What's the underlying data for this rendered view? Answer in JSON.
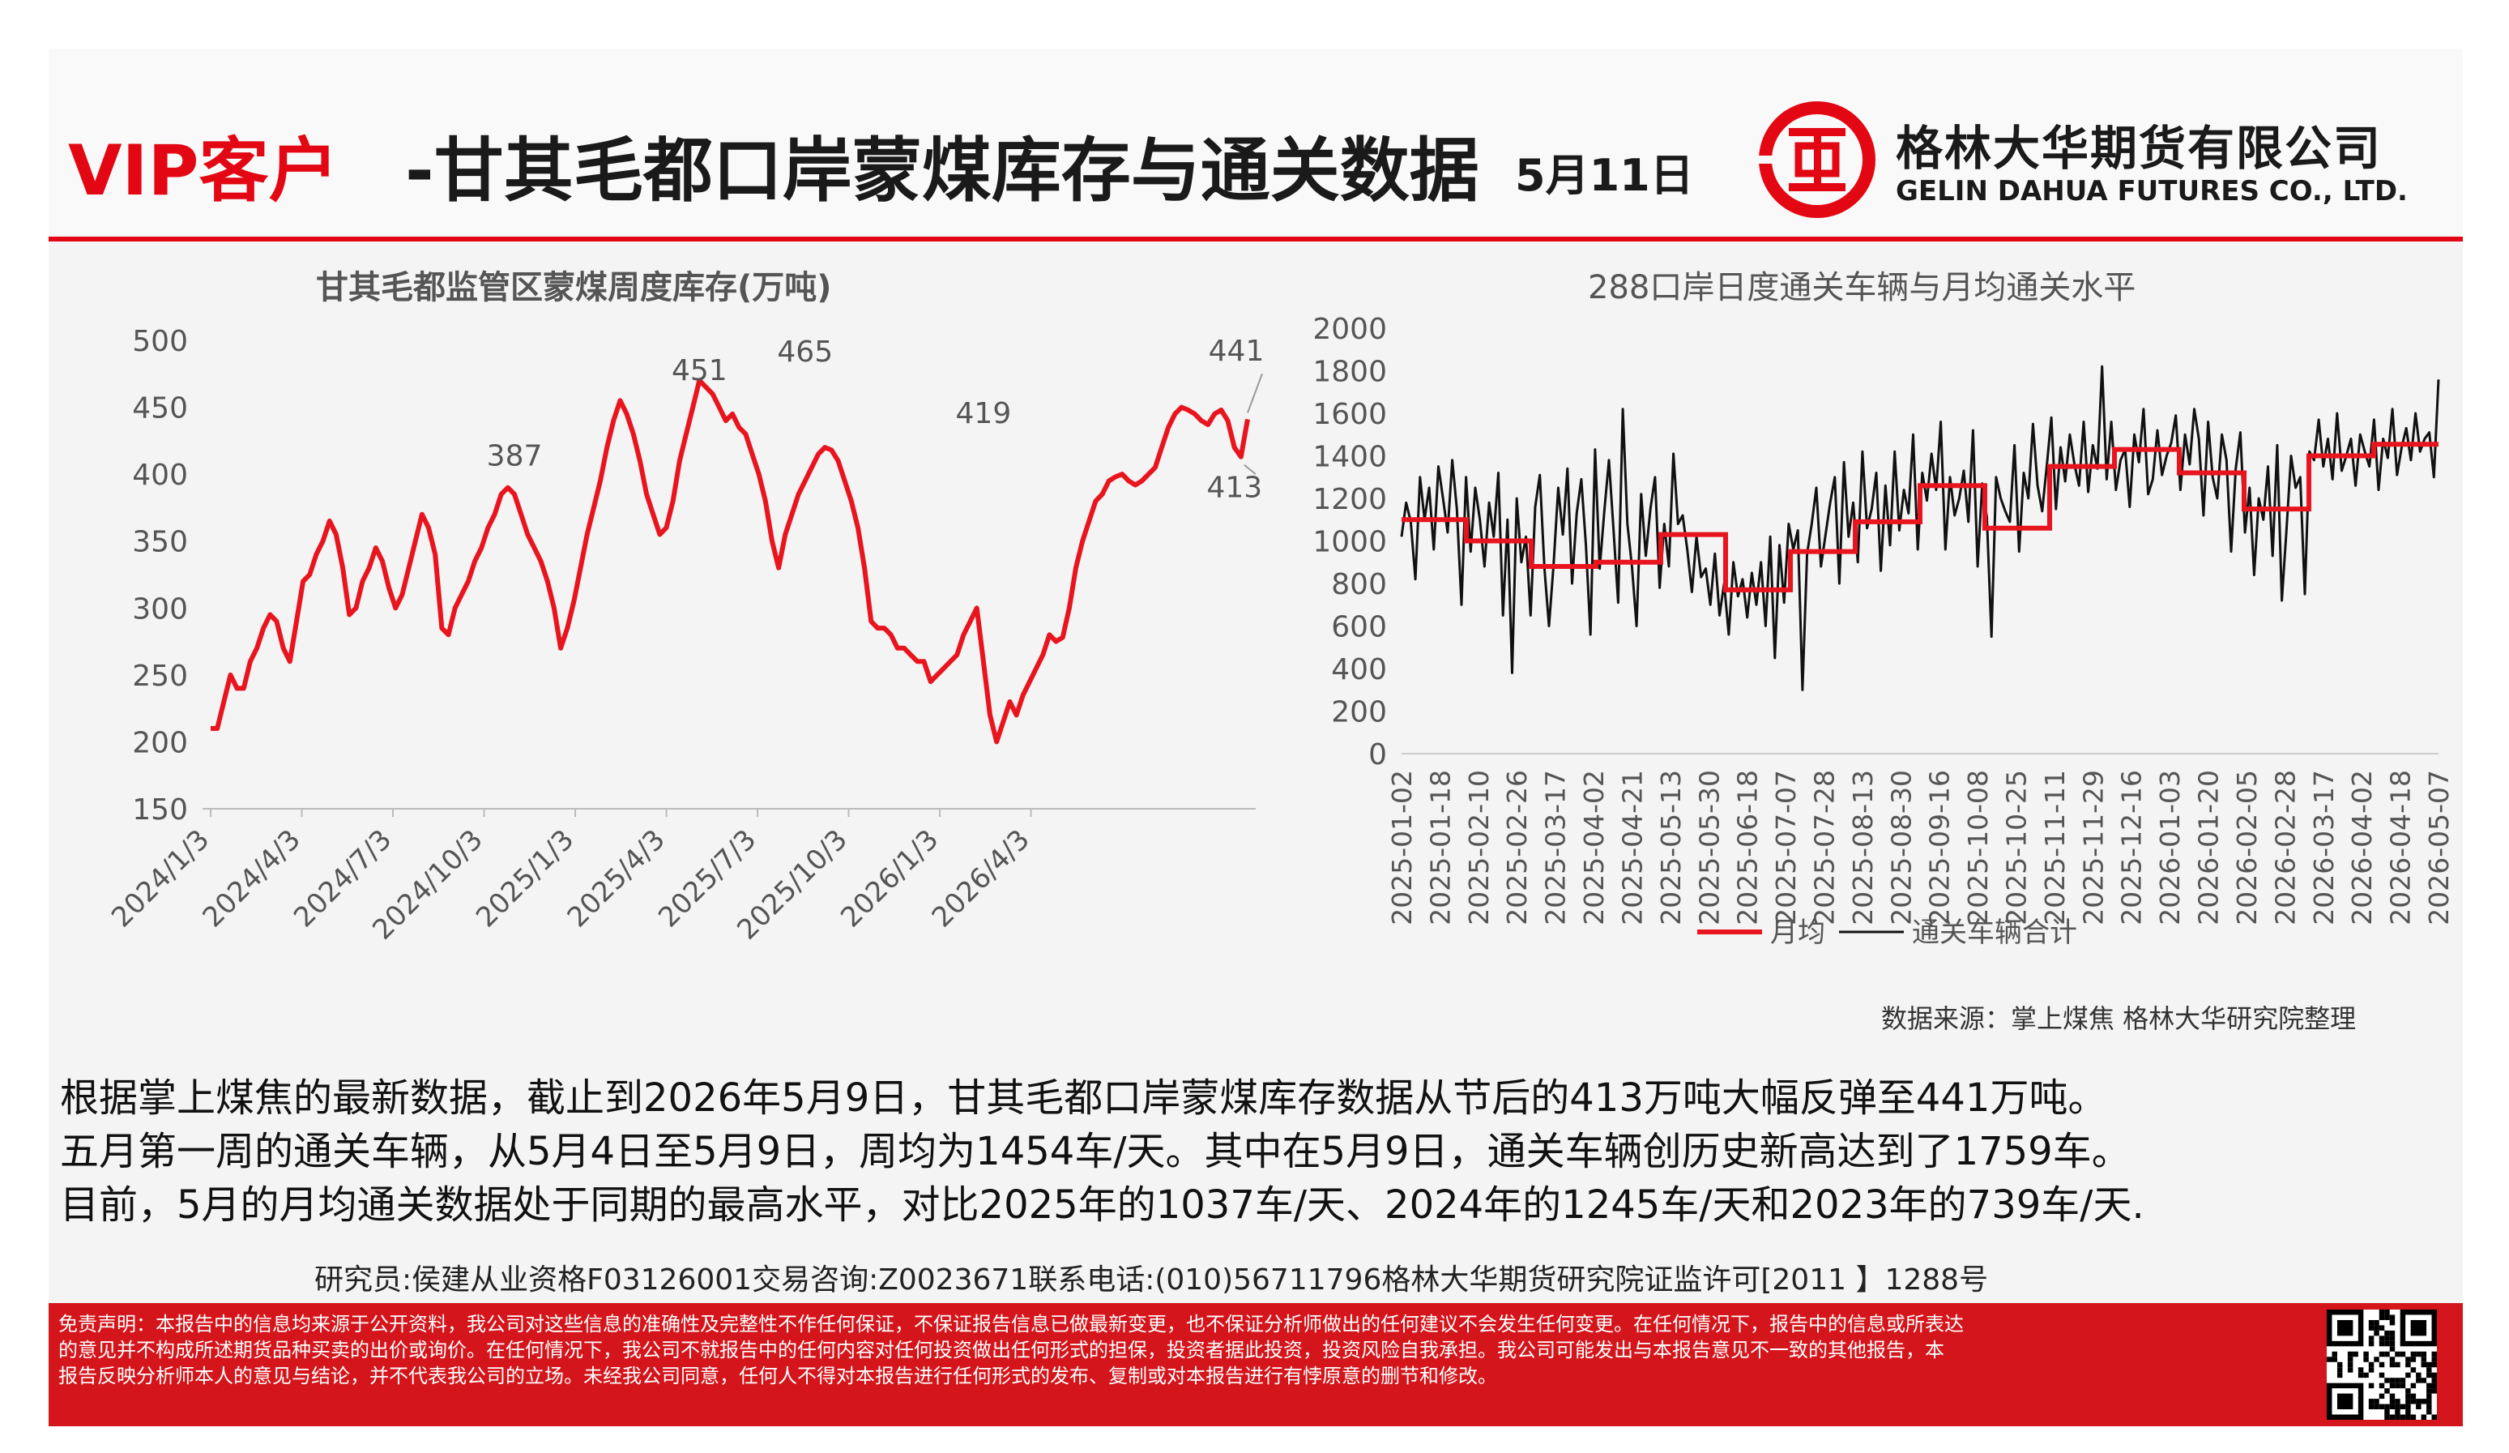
{
  "header": {
    "title_prefix": "VIP客户",
    "title_main": "-甘其毛都口岸蒙煤库存与通关数据",
    "date": "5月11日",
    "company_cn": "格林大华期货有限公司",
    "company_en": "GELIN DAHUA FUTURES CO., LTD.",
    "logo_icon": "gelin-dahua-logo-icon",
    "brand_color": "#e30613"
  },
  "chart_data": [
    {
      "type": "line",
      "title": "甘其毛都监管区蒙煤周度库存(万吨)",
      "ylim": [
        150,
        500
      ],
      "yticks": [
        150,
        200,
        250,
        300,
        350,
        400,
        450,
        500
      ],
      "xtick_labels": [
        "2024/1/3",
        "2024/4/3",
        "2024/7/3",
        "2024/10/3",
        "2025/1/3",
        "2025/4/3",
        "2025/7/3",
        "2025/10/3",
        "2026/1/3",
        "2026/4/3"
      ],
      "series": [
        {
          "color": "#e8141e",
          "values": [
            210,
            210,
            230,
            250,
            240,
            240,
            260,
            270,
            285,
            295,
            290,
            270,
            260,
            290,
            320,
            325,
            340,
            350,
            365,
            355,
            330,
            295,
            300,
            320,
            330,
            345,
            335,
            315,
            300,
            310,
            330,
            350,
            370,
            360,
            340,
            285,
            280,
            300,
            310,
            320,
            335,
            345,
            360,
            370,
            385,
            390,
            385,
            370,
            355,
            345,
            335,
            320,
            300,
            270,
            285,
            305,
            330,
            355,
            375,
            395,
            420,
            440,
            455,
            445,
            430,
            410,
            385,
            370,
            355,
            360,
            380,
            410,
            430,
            450,
            470,
            465,
            460,
            450,
            440,
            445,
            435,
            430,
            415,
            400,
            380,
            350,
            330,
            355,
            370,
            385,
            395,
            405,
            415,
            420,
            418,
            410,
            395,
            380,
            360,
            330,
            290,
            285,
            285,
            280,
            270,
            270,
            265,
            260,
            260,
            245,
            250,
            255,
            260,
            265,
            280,
            290,
            300,
            260,
            220,
            200,
            215,
            230,
            220,
            235,
            245,
            255,
            265,
            280,
            275,
            278,
            300,
            330,
            350,
            365,
            380,
            385,
            395,
            398,
            400,
            395,
            392,
            395,
            400,
            405,
            420,
            435,
            445,
            450,
            448,
            445,
            440,
            437,
            445,
            448,
            440,
            420,
            413,
            441
          ]
        }
      ],
      "annotations": [
        {
          "label": "387",
          "x": 46,
          "y": 387
        },
        {
          "label": "451",
          "x": 74,
          "y": 451
        },
        {
          "label": "465",
          "x": 90,
          "y": 465
        },
        {
          "label": "419",
          "x": 117,
          "y": 419
        },
        {
          "label": "441",
          "x": 157,
          "y": 441
        },
        {
          "label": "413",
          "x": 156,
          "y": 413
        }
      ]
    },
    {
      "type": "line",
      "title": "288口岸日度通关车辆与月均通关水平",
      "ylim": [
        0,
        2000
      ],
      "yticks": [
        0,
        200,
        400,
        600,
        800,
        1000,
        1200,
        1400,
        1600,
        1800,
        2000
      ],
      "xtick_labels": [
        "2025-01-02",
        "2025-01-18",
        "2025-02-10",
        "2025-02-26",
        "2025-03-17",
        "2025-04-02",
        "2025-04-21",
        "2025-05-13",
        "2025-05-30",
        "2025-06-18",
        "2025-07-07",
        "2025-07-28",
        "2025-08-13",
        "2025-08-30",
        "2025-09-16",
        "2025-10-08",
        "2025-10-25",
        "2025-11-11",
        "2025-11-29",
        "2025-12-16",
        "2026-01-03",
        "2026-01-20",
        "2026-02-05",
        "2026-02-28",
        "2026-03-17",
        "2026-04-02",
        "2026-04-18",
        "2026-05-07"
      ],
      "legend": [
        "月均",
        "通关车辆合计"
      ],
      "legend_position": "bottom",
      "series": [
        {
          "name": "月均",
          "color": "#e8141e",
          "steps": [
            1100,
            1000,
            880,
            900,
            1030,
            770,
            950,
            1090,
            1260,
            1060,
            1350,
            1430,
            1320,
            1150,
            1400,
            1454
          ]
        },
        {
          "name": "通关车辆合计",
          "color": "#111111",
          "values": [
            1020,
            1180,
            1090,
            820,
            1300,
            1100,
            1250,
            960,
            1350,
            1200,
            1040,
            1380,
            1150,
            700,
            1300,
            950,
            1250,
            1100,
            880,
            1180,
            1020,
            1320,
            650,
            1100,
            380,
            1200,
            900,
            1020,
            650,
            1160,
            1310,
            870,
            600,
            890,
            1250,
            1030,
            1340,
            800,
            1130,
            1290,
            980,
            560,
            1430,
            870,
            1140,
            1380,
            1050,
            710,
            1620,
            1080,
            880,
            600,
            1220,
            930,
            1150,
            1300,
            780,
            1080,
            880,
            1410,
            1080,
            1120,
            960,
            760,
            1020,
            830,
            870,
            700,
            940,
            650,
            800,
            560,
            900,
            740,
            820,
            640,
            850,
            700,
            900,
            600,
            1020,
            450,
            980,
            710,
            1080,
            960,
            1050,
            300,
            940,
            1080,
            1250,
            880,
            1030,
            1180,
            1300,
            800,
            1370,
            1020,
            1180,
            900,
            1420,
            1060,
            1150,
            1320,
            860,
            1260,
            980,
            1420,
            1050,
            1240,
            1130,
            1500,
            960,
            1320,
            1190,
            1410,
            1240,
            1560,
            960,
            1300,
            1120,
            1200,
            1330,
            1090,
            1520,
            880,
            1270,
            1110,
            550,
            1300,
            1200,
            1140,
            1090,
            1450,
            950,
            1320,
            1200,
            1550,
            1260,
            1140,
            1350,
            1580,
            1150,
            1440,
            1280,
            1500,
            1360,
            1260,
            1560,
            1230,
            1450,
            1340,
            1820,
            1290,
            1560,
            1240,
            1380,
            1430,
            1160,
            1500,
            1370,
            1620,
            1220,
            1290,
            1520,
            1310,
            1400,
            1460,
            1590,
            1240,
            1500,
            1360,
            1620,
            1480,
            1120,
            1560,
            1300,
            1200,
            1500,
            1380,
            950,
            1340,
            1510,
            1040,
            1250,
            840,
            1200,
            1100,
            1350,
            930,
            1450,
            720,
            1050,
            1400,
            1250,
            1300,
            750,
            1420,
            1380,
            1570,
            1350,
            1480,
            1290,
            1600,
            1330,
            1400,
            1480,
            1260,
            1500,
            1420,
            1350,
            1570,
            1240,
            1480,
            1390,
            1620,
            1310,
            1440,
            1530,
            1380,
            1600,
            1420,
            1480,
            1510,
            1300,
            1759
          ]
        }
      ],
      "annotations": [
        {
          "label": "1759",
          "x": 243,
          "y": 1759
        }
      ]
    }
  ],
  "source": "数据来源：掌上煤焦 格林大华研究院整理",
  "paragraph": {
    "line1": "根据掌上煤焦的最新数据，截止到2026年5月9日，甘其毛都口岸蒙煤库存数据从节后的413万吨大幅反弹至441万吨。",
    "line2": "五月第一周的通关车辆，从5月4日至5月9日，周均为1454车/天。其中在5月9日，通关车辆创历史新高达到了1759车。",
    "line3": "目前，5月的月均通关数据处于同期的最高水平，对比2025年的1037车/天、2024年的1245车/天和2023年的739车/天."
  },
  "researcher": "研究员:侯建从业资格F03126001交易咨询:Z0023671联系电话:(010)56711796格林大华期货研究院证监许可[2011 】1288号",
  "disclaimer": {
    "line1": "免责声明：本报告中的信息均来源于公开资料，我公司对这些信息的准确性及完整性不作任何保证，不保证报告信息已做最新变更，也不保证分析师做出的任何建议不会发生任何变更。在任何情况下，报告中的信息或所表达",
    "line2": "的意见并不构成所述期货品种买卖的出价或询价。在任何情况下，我公司不就报告中的任何内容对任何投资做出任何形式的担保，投资者据此投资，投资风险自我承担。我公司可能发出与本报告意见不一致的其他报告，本",
    "line3": "报告反映分析师本人的意见与结论，并不代表我公司的立场。未经我公司同意，任何人不得对本报告进行任何形式的发布、复制或对本报告进行有悖原意的删节和修改。",
    "qr_icon": "qr-code-icon",
    "color": "#d4151b"
  }
}
